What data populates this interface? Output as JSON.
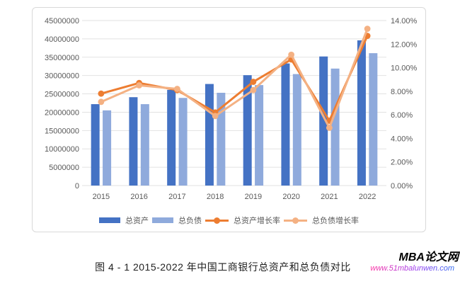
{
  "caption": "图 4 - 1 2015-2022 年中国工商银行总资产和总负债对比",
  "watermark": {
    "brand": "MBA论文网",
    "url": "www.51mbalunwen.com"
  },
  "chart_data": {
    "type": "bar+line combo",
    "categories": [
      "2015",
      "2016",
      "2017",
      "2018",
      "2019",
      "2020",
      "2021",
      "2022"
    ],
    "bar_series": [
      {
        "key": "total-assets",
        "name": "总资产",
        "color": "#4472C4",
        "axis": "left",
        "values": [
          22200000,
          24100000,
          26100000,
          27700000,
          30100000,
          33300000,
          35200000,
          39600000
        ]
      },
      {
        "key": "total-liabilities",
        "name": "总负债",
        "color": "#8FAADC",
        "axis": "left",
        "values": [
          20500000,
          22200000,
          23900000,
          25300000,
          27400000,
          30400000,
          31900000,
          36100000
        ]
      }
    ],
    "line_series": [
      {
        "key": "asset-growth-rate",
        "name": "总资产增长率",
        "color": "#ED7D31",
        "axis": "right",
        "values": [
          7.8,
          8.7,
          8.1,
          6.2,
          8.8,
          10.7,
          5.5,
          12.7
        ]
      },
      {
        "key": "liability-growth-rate",
        "name": "总负债增长率",
        "color": "#F4B183",
        "axis": "right",
        "values": [
          7.1,
          8.5,
          8.2,
          5.9,
          8.1,
          11.1,
          4.9,
          13.3
        ]
      }
    ],
    "left_axis": {
      "min": 0,
      "max": 45000000,
      "tick_step": 5000000,
      "tick_labels": [
        "0",
        "5000000",
        "10000000",
        "15000000",
        "20000000",
        "25000000",
        "30000000",
        "35000000",
        "40000000",
        "45000000"
      ]
    },
    "right_axis": {
      "min": 0,
      "max": 14,
      "tick_step": 2,
      "tick_labels": [
        "0.00%",
        "2.00%",
        "4.00%",
        "6.00%",
        "8.00%",
        "10.00%",
        "12.00%",
        "14.00%"
      ]
    },
    "grid": true,
    "legend_position": "bottom",
    "colors": {
      "grid": "#E2E2E2",
      "axis_text": "#595959",
      "panel_border": "#D9D9D9"
    }
  }
}
